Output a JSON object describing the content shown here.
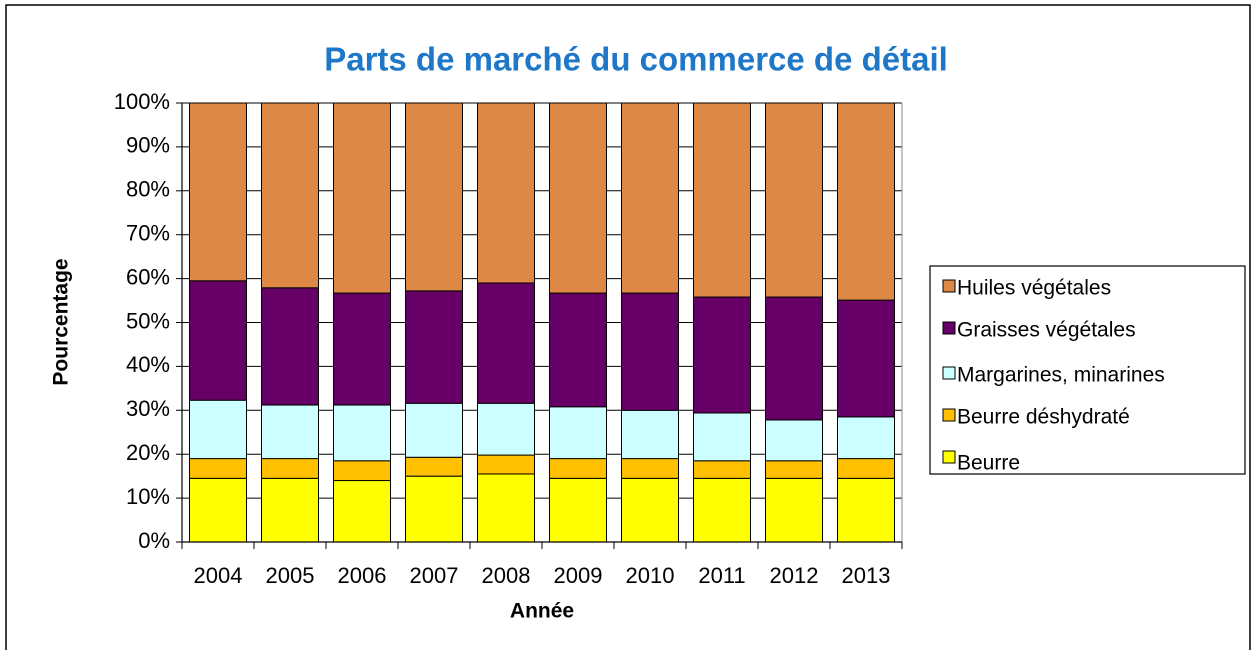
{
  "chart_data": {
    "type": "stacked_bar",
    "title": "Parts de marché du commerce de détail",
    "x_label": "Année",
    "y_label": "Pourcentage",
    "categories": [
      "2004",
      "2005",
      "2006",
      "2007",
      "2008",
      "2009",
      "2010",
      "2011",
      "2012",
      "2013"
    ],
    "series": [
      {
        "name": "Beurre",
        "color": "#ffff00",
        "values": [
          14.5,
          14.5,
          14,
          15,
          15.5,
          14.5,
          14.5,
          14.5,
          14.5,
          14.5
        ]
      },
      {
        "name": "Beurre déshydraté",
        "color": "#ffc000",
        "values": [
          4.5,
          4.5,
          4.5,
          4.3,
          4.3,
          4.5,
          4.5,
          4,
          4,
          4.5
        ]
      },
      {
        "name": "Margarines, minarines",
        "color": "#ccffff",
        "values": [
          13.3,
          12.2,
          12.7,
          12.3,
          11.8,
          11.8,
          11,
          10.9,
          9.3,
          9.5
        ]
      },
      {
        "name": "Graisses végétales",
        "color": "#660066",
        "values": [
          27.2,
          26.7,
          25.5,
          25.6,
          27.4,
          25.9,
          26.7,
          26.4,
          28,
          26.6
        ]
      },
      {
        "name": "Huiles végétales",
        "color": "#dd8844",
        "values": [
          40.5,
          42.1,
          43.3,
          42.8,
          41,
          43.3,
          43.3,
          44.2,
          44.2,
          44.9
        ]
      }
    ],
    "ylim": [
      0,
      100
    ],
    "yticks": [
      {
        "value": 0,
        "label": "0%"
      },
      {
        "value": 10,
        "label": "10%"
      },
      {
        "value": 20,
        "label": "20%"
      },
      {
        "value": 30,
        "label": "30%"
      },
      {
        "value": 40,
        "label": "40%"
      },
      {
        "value": 50,
        "label": "50%"
      },
      {
        "value": 60,
        "label": "60%"
      },
      {
        "value": 70,
        "label": "70%"
      },
      {
        "value": 80,
        "label": "80%"
      },
      {
        "value": 90,
        "label": "90%"
      },
      {
        "value": 100,
        "label": "100%"
      }
    ],
    "grid": true,
    "legend": "right"
  }
}
